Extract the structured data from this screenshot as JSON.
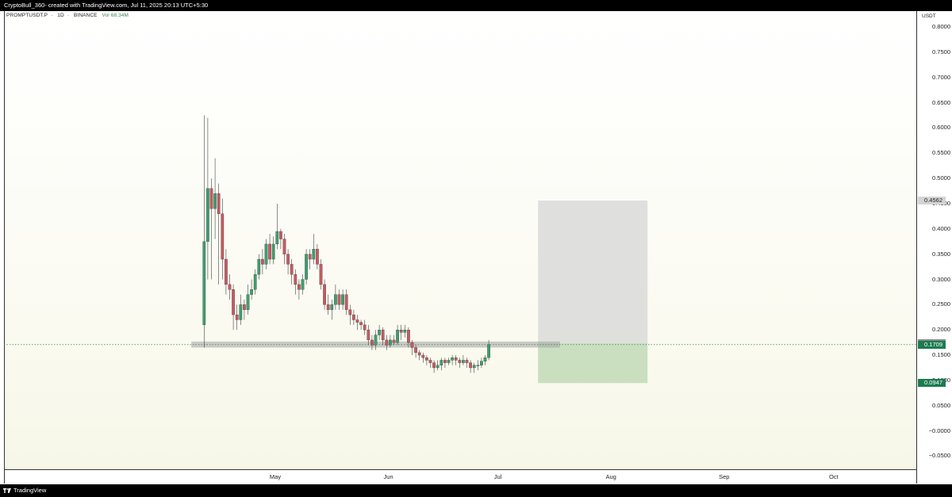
{
  "header": {
    "caption": "CryptoBull_360- created with TradingView.com, Jul 11, 2025 20:13 UTC+5:30"
  },
  "legend": {
    "symbol": "PROMPTUSDT.P",
    "interval": "1D",
    "exchange": "BINANCE",
    "volume": "Vol 68.34M"
  },
  "footer": {
    "brand": "TradingView"
  },
  "chart_data": {
    "type": "candlestick",
    "unit": "USDT",
    "ylim": [
      -0.08,
      0.82
    ],
    "yticks": [
      "0.8000",
      "0.7500",
      "0.7000",
      "0.6500",
      "0.6000",
      "0.5500",
      "0.5000",
      "0.4500",
      "0.4000",
      "0.3500",
      "0.3000",
      "0.2500",
      "0.2000",
      "0.1500",
      "0.1000",
      "0.0500",
      "−0.0000",
      "−0.0500"
    ],
    "ytick_values": [
      0.8,
      0.75,
      0.7,
      0.65,
      0.6,
      0.55,
      0.5,
      0.45,
      0.4,
      0.35,
      0.3,
      0.25,
      0.2,
      0.15,
      0.1,
      0.05,
      0,
      -0.05
    ],
    "xticks": [
      {
        "label": "May",
        "day": 20
      },
      {
        "label": "Jun",
        "day": 51
      },
      {
        "label": "Jul",
        "day": 81
      },
      {
        "label": "Aug",
        "day": 112
      },
      {
        "label": "Sep",
        "day": 143
      },
      {
        "label": "Oct",
        "day": 173
      }
    ],
    "start_date": "2025-04-11",
    "candles": [
      [
        0.21,
        0.375,
        0.625,
        0.165
      ],
      [
        0.375,
        0.48,
        0.62,
        0.3
      ],
      [
        0.48,
        0.44,
        0.5,
        0.3
      ],
      [
        0.44,
        0.47,
        0.54,
        0.38
      ],
      [
        0.47,
        0.43,
        0.49,
        0.29
      ],
      [
        0.43,
        0.34,
        0.46,
        0.3
      ],
      [
        0.34,
        0.29,
        0.36,
        0.27
      ],
      [
        0.29,
        0.28,
        0.31,
        0.26
      ],
      [
        0.28,
        0.23,
        0.29,
        0.2
      ],
      [
        0.23,
        0.22,
        0.25,
        0.2
      ],
      [
        0.22,
        0.25,
        0.27,
        0.21
      ],
      [
        0.25,
        0.24,
        0.26,
        0.22
      ],
      [
        0.24,
        0.27,
        0.29,
        0.23
      ],
      [
        0.27,
        0.28,
        0.3,
        0.26
      ],
      [
        0.28,
        0.31,
        0.32,
        0.27
      ],
      [
        0.31,
        0.34,
        0.35,
        0.3
      ],
      [
        0.34,
        0.33,
        0.36,
        0.31
      ],
      [
        0.33,
        0.37,
        0.38,
        0.32
      ],
      [
        0.37,
        0.34,
        0.39,
        0.33
      ],
      [
        0.34,
        0.37,
        0.385,
        0.33
      ],
      [
        0.37,
        0.395,
        0.45,
        0.36
      ],
      [
        0.395,
        0.38,
        0.4,
        0.36
      ],
      [
        0.38,
        0.35,
        0.39,
        0.33
      ],
      [
        0.35,
        0.33,
        0.36,
        0.31
      ],
      [
        0.33,
        0.31,
        0.34,
        0.29
      ],
      [
        0.31,
        0.29,
        0.32,
        0.27
      ],
      [
        0.29,
        0.28,
        0.3,
        0.26
      ],
      [
        0.28,
        0.3,
        0.31,
        0.27
      ],
      [
        0.3,
        0.35,
        0.36,
        0.29
      ],
      [
        0.35,
        0.34,
        0.36,
        0.32
      ],
      [
        0.34,
        0.36,
        0.39,
        0.33
      ],
      [
        0.36,
        0.33,
        0.37,
        0.32
      ],
      [
        0.33,
        0.29,
        0.34,
        0.28
      ],
      [
        0.29,
        0.25,
        0.3,
        0.24
      ],
      [
        0.25,
        0.24,
        0.27,
        0.23
      ],
      [
        0.24,
        0.25,
        0.26,
        0.22
      ],
      [
        0.25,
        0.27,
        0.29,
        0.24
      ],
      [
        0.27,
        0.25,
        0.28,
        0.24
      ],
      [
        0.25,
        0.27,
        0.28,
        0.24
      ],
      [
        0.27,
        0.24,
        0.28,
        0.23
      ],
      [
        0.24,
        0.23,
        0.25,
        0.21
      ],
      [
        0.23,
        0.22,
        0.24,
        0.21
      ],
      [
        0.22,
        0.215,
        0.23,
        0.2
      ],
      [
        0.215,
        0.21,
        0.22,
        0.2
      ],
      [
        0.21,
        0.2,
        0.22,
        0.19
      ],
      [
        0.2,
        0.18,
        0.21,
        0.17
      ],
      [
        0.18,
        0.17,
        0.19,
        0.16
      ],
      [
        0.17,
        0.19,
        0.2,
        0.16
      ],
      [
        0.19,
        0.2,
        0.21,
        0.18
      ],
      [
        0.2,
        0.18,
        0.205,
        0.17
      ],
      [
        0.18,
        0.17,
        0.19,
        0.16
      ],
      [
        0.17,
        0.18,
        0.19,
        0.165
      ],
      [
        0.18,
        0.175,
        0.19,
        0.17
      ],
      [
        0.175,
        0.2,
        0.21,
        0.17
      ],
      [
        0.2,
        0.195,
        0.21,
        0.18
      ],
      [
        0.195,
        0.2,
        0.21,
        0.185
      ],
      [
        0.2,
        0.175,
        0.205,
        0.165
      ],
      [
        0.175,
        0.165,
        0.18,
        0.15
      ],
      [
        0.165,
        0.155,
        0.17,
        0.145
      ],
      [
        0.155,
        0.15,
        0.16,
        0.14
      ],
      [
        0.15,
        0.145,
        0.155,
        0.135
      ],
      [
        0.145,
        0.14,
        0.15,
        0.13
      ],
      [
        0.14,
        0.135,
        0.145,
        0.125
      ],
      [
        0.135,
        0.125,
        0.14,
        0.115
      ],
      [
        0.125,
        0.13,
        0.14,
        0.12
      ],
      [
        0.13,
        0.14,
        0.145,
        0.12
      ],
      [
        0.14,
        0.135,
        0.145,
        0.125
      ],
      [
        0.135,
        0.14,
        0.145,
        0.13
      ],
      [
        0.14,
        0.145,
        0.15,
        0.13
      ],
      [
        0.145,
        0.14,
        0.15,
        0.13
      ],
      [
        0.14,
        0.135,
        0.145,
        0.125
      ],
      [
        0.135,
        0.14,
        0.15,
        0.13
      ],
      [
        0.14,
        0.135,
        0.145,
        0.125
      ],
      [
        0.135,
        0.125,
        0.14,
        0.115
      ],
      [
        0.125,
        0.13,
        0.135,
        0.115
      ],
      [
        0.13,
        0.13,
        0.14,
        0.12
      ],
      [
        0.13,
        0.138,
        0.145,
        0.125
      ],
      [
        0.138,
        0.145,
        0.15,
        0.13
      ],
      [
        0.145,
        0.1709,
        0.18,
        0.14
      ]
    ],
    "support_zone": {
      "low": 0.165,
      "high": 0.177,
      "from_day": -3,
      "to_day": 98
    },
    "price_line": 0.1709,
    "position": {
      "entry": 0.1738,
      "target": 0.4562,
      "stop": 0.0947,
      "from_day": 92,
      "to_day": 122
    },
    "labels": {
      "target": "0.4562",
      "entry": "0.1738",
      "price": "0.1709",
      "stop": "0.0947"
    },
    "colors": {
      "up": "#3f9e6e",
      "down": "#c65a60",
      "price_badge": "#1b7c4f",
      "stop_badge": "#1b7c4f",
      "target_fill": "#d6d6d6",
      "stop_fill": "#b9d6b0",
      "zone": "#a3a3a3"
    }
  }
}
